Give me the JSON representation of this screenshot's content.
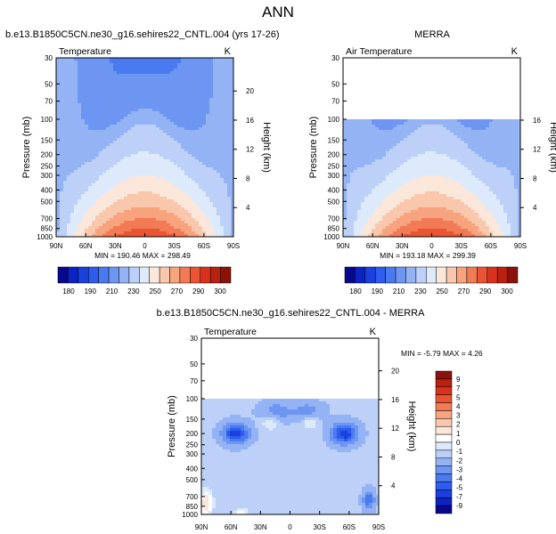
{
  "figure": {
    "title": "ANN",
    "panel_a_caption": "b.e13.B1850C5CN.ne30_g16.sehires22_CNTL.004 (yrs 17-26)",
    "panel_b_caption": "MERRA",
    "panel_c_caption": "b.e13.B1850C5CN.ne30_g16.sehires22_CNTL.004 - MERRA"
  },
  "colors": {
    "field_scale": [
      "#08088f",
      "#0d22c2",
      "#1a40dd",
      "#2d5cee",
      "#4a7af0",
      "#6d96f2",
      "#94b3f5",
      "#bcd0f8",
      "#ddeafb",
      "#fbe6da",
      "#f9c7ac",
      "#f7a37e",
      "#f27a55",
      "#ea5432",
      "#d8321c",
      "#b8200f",
      "#8c1109"
    ],
    "diff_scale": [
      "#08088f",
      "#0d22c2",
      "#1a40dd",
      "#2d5cee",
      "#4a7af0",
      "#6d96f2",
      "#94b3f5",
      "#bcd0f8",
      "#ddeafb",
      "#ffffff",
      "#fbe6da",
      "#f9c7ac",
      "#f7a37e",
      "#f27a55",
      "#ea5432",
      "#d8321c",
      "#b8200f",
      "#8c1109"
    ],
    "frame": "#000000",
    "missing": "#ffffff"
  },
  "chart_data": [
    {
      "id": "model",
      "type": "heatmap",
      "title": "Temperature",
      "units": "K",
      "xlabel": "",
      "ylabel": "Pressure (mb)",
      "ylabel_right": "Height (km)",
      "x_ticks": [
        "90N",
        "60N",
        "30N",
        "0",
        "30S",
        "60S",
        "90S"
      ],
      "y_ticks": [
        30,
        50,
        70,
        100,
        150,
        200,
        250,
        300,
        400,
        500,
        700,
        850,
        1000
      ],
      "height_ticks": [
        4,
        8,
        12,
        16,
        20
      ],
      "x_range": [
        90,
        -90
      ],
      "y_range_mb": [
        30,
        1000
      ],
      "min_label": "MIN = 190.46",
      "max_label": "MAX = 298.49",
      "min": 190.46,
      "max": 298.49,
      "colorbar_labels": [
        180,
        190,
        210,
        230,
        250,
        270,
        290,
        300
      ],
      "levels": [
        175,
        180,
        185,
        190,
        200,
        210,
        220,
        230,
        240,
        250,
        260,
        270,
        280,
        290,
        295,
        300
      ],
      "data_top_mb": 30
    },
    {
      "id": "merra",
      "type": "heatmap",
      "title": "Air Temperature",
      "units": "K",
      "xlabel": "",
      "ylabel": "Pressure (mb)",
      "ylabel_right": "Height (km)",
      "x_ticks": [
        "90N",
        "60N",
        "30N",
        "0",
        "30S",
        "60S",
        "90S"
      ],
      "y_ticks": [
        30,
        50,
        70,
        100,
        150,
        200,
        250,
        300,
        400,
        500,
        700,
        850,
        1000
      ],
      "height_ticks": [
        4,
        8,
        12,
        16
      ],
      "x_range": [
        90,
        -90
      ],
      "y_range_mb": [
        30,
        1000
      ],
      "min_label": "MIN = 193.18",
      "max_label": "MAX = 299.39",
      "min": 193.18,
      "max": 299.39,
      "colorbar_labels": [
        180,
        190,
        210,
        230,
        250,
        270,
        290,
        300
      ],
      "levels": [
        175,
        180,
        185,
        190,
        200,
        210,
        220,
        230,
        240,
        250,
        260,
        270,
        280,
        290,
        295,
        300
      ],
      "data_top_mb": 100
    },
    {
      "id": "diff",
      "type": "heatmap",
      "title": "Temperature",
      "units": "K",
      "xlabel": "",
      "ylabel": "Pressure (mb)",
      "ylabel_right": "Height (km)",
      "x_ticks": [
        "90N",
        "60N",
        "30N",
        "0",
        "30S",
        "60S",
        "90S"
      ],
      "y_ticks": [
        30,
        50,
        70,
        100,
        150,
        200,
        250,
        300,
        400,
        500,
        700,
        850,
        1000
      ],
      "height_ticks": [
        4,
        8,
        12,
        16,
        20
      ],
      "x_range": [
        90,
        -90
      ],
      "y_range_mb": [
        30,
        1000
      ],
      "min_label": "MIN = -5.79",
      "max_label": "MAX =   4.26",
      "min": -5.79,
      "max": 4.26,
      "colorbar_labels": [
        "9",
        "7",
        "5",
        "4",
        "3",
        "2",
        "1",
        "0",
        "-1",
        "-2",
        "-3",
        "-4",
        "-5",
        "-7",
        "-9"
      ],
      "levels": [
        -9,
        -7,
        -5,
        -4,
        -3,
        -2,
        -1,
        -0.5,
        0,
        0.5,
        1,
        2,
        3,
        4,
        5,
        7,
        9
      ],
      "data_top_mb": 100
    }
  ]
}
